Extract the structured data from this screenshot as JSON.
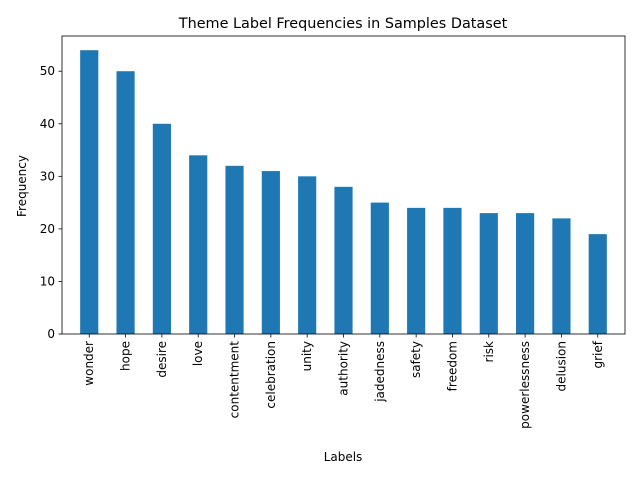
{
  "chart_data": {
    "type": "bar",
    "title": "Theme Label Frequencies in Samples Dataset",
    "xlabel": "Labels",
    "ylabel": "Frequency",
    "categories": [
      "wonder",
      "hope",
      "desire",
      "love",
      "contentment",
      "celebration",
      "unity",
      "authority",
      "jadedness",
      "safety",
      "freedom",
      "risk",
      "powerlessness",
      "delusion",
      "grief"
    ],
    "values": [
      54,
      50,
      40,
      34,
      32,
      31,
      30,
      28,
      25,
      24,
      24,
      23,
      23,
      22,
      19
    ],
    "ylim": [
      0,
      56.7
    ],
    "yticks": [
      0,
      10,
      20,
      30,
      40,
      50
    ],
    "bar_color": "#1f77b4",
    "grid": false,
    "legend": "none"
  }
}
